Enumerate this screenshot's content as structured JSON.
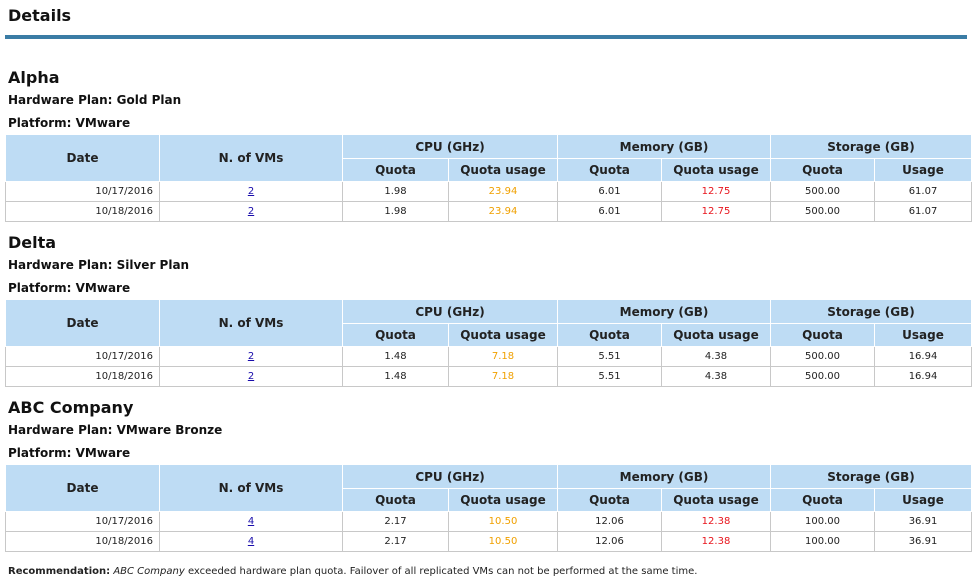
{
  "page_title": "Details",
  "labels": {
    "hardware_plan": "Hardware Plan:",
    "platform": "Platform:"
  },
  "table_headers": {
    "date": "Date",
    "vms": "N. of VMs",
    "cpu": "CPU (GHz)",
    "memory": "Memory (GB)",
    "storage": "Storage (GB)",
    "quota": "Quota",
    "quota_usage": "Quota usage",
    "usage": "Usage"
  },
  "colors": {
    "title_rule": "#3a7ca5",
    "header_bg": "#bedcf4",
    "warning": "#f0a000",
    "exceeded": "#e8161e"
  },
  "sections": [
    {
      "name": "Alpha",
      "plan": "Gold Plan",
      "platform": "VMware",
      "rows": [
        {
          "date": "10/17/2016",
          "vms": "2",
          "cpu_quota": "1.98",
          "cpu_usage": "23.94",
          "cpu_status": "warning",
          "mem_quota": "6.01",
          "mem_usage": "12.75",
          "mem_status": "exceeded",
          "sto_quota": "500.00",
          "sto_usage": "61.07"
        },
        {
          "date": "10/18/2016",
          "vms": "2",
          "cpu_quota": "1.98",
          "cpu_usage": "23.94",
          "cpu_status": "warning",
          "mem_quota": "6.01",
          "mem_usage": "12.75",
          "mem_status": "exceeded",
          "sto_quota": "500.00",
          "sto_usage": "61.07"
        }
      ]
    },
    {
      "name": "Delta",
      "plan": "Silver Plan",
      "platform": "VMware",
      "rows": [
        {
          "date": "10/17/2016",
          "vms": "2",
          "cpu_quota": "1.48",
          "cpu_usage": "7.18",
          "cpu_status": "warning",
          "mem_quota": "5.51",
          "mem_usage": "4.38",
          "mem_status": "normal",
          "sto_quota": "500.00",
          "sto_usage": "16.94"
        },
        {
          "date": "10/18/2016",
          "vms": "2",
          "cpu_quota": "1.48",
          "cpu_usage": "7.18",
          "cpu_status": "warning",
          "mem_quota": "5.51",
          "mem_usage": "4.38",
          "mem_status": "normal",
          "sto_quota": "500.00",
          "sto_usage": "16.94"
        }
      ]
    },
    {
      "name": "ABC Company",
      "plan": "VMware Bronze",
      "platform": "VMware",
      "rows": [
        {
          "date": "10/17/2016",
          "vms": "4",
          "cpu_quota": "2.17",
          "cpu_usage": "10.50",
          "cpu_status": "warning",
          "mem_quota": "12.06",
          "mem_usage": "12.38",
          "mem_status": "exceeded",
          "sto_quota": "100.00",
          "sto_usage": "36.91"
        },
        {
          "date": "10/18/2016",
          "vms": "4",
          "cpu_quota": "2.17",
          "cpu_usage": "10.50",
          "cpu_status": "warning",
          "mem_quota": "12.06",
          "mem_usage": "12.38",
          "mem_status": "exceeded",
          "sto_quota": "100.00",
          "sto_usage": "36.91"
        }
      ]
    }
  ],
  "recommendation": {
    "label": "Recommendation:",
    "company": "ABC Company",
    "text": "exceeded hardware plan quota. Failover of all replicated VMs can not be performed at the same time."
  }
}
